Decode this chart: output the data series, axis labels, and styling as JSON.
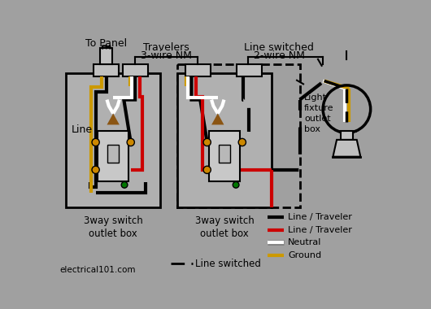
{
  "bg_color": "#a0a0a0",
  "colors": {
    "black": "#000000",
    "red": "#cc0000",
    "white": "#ffffff",
    "gold": "#cc9900",
    "brown": "#8B5513",
    "green": "#007700",
    "orange": "#cc8800",
    "box_fill": "#b0b0b0",
    "nm_fill": "#c0c0c0",
    "switch_fill": "#d0d0d0",
    "switch_body": "#c8c8c8"
  },
  "labels": {
    "to_panel": "To Panel",
    "travelers": "Travelers",
    "nm3": "3-wire NM",
    "line_switched": "Line switched",
    "nm2": "2-wire NM",
    "line": "Line",
    "light_fixture": "Light\nfixture\noutlet\nbox",
    "box1": "3way switch\noutlet box",
    "box2": "3way switch\noutlet box",
    "website": "electrical101.com",
    "line_switched_bot": "Line switched",
    "leg_black": "Line / Traveler",
    "leg_red": "Line / Traveler",
    "leg_white": "Neutral",
    "leg_gold": "Ground"
  }
}
